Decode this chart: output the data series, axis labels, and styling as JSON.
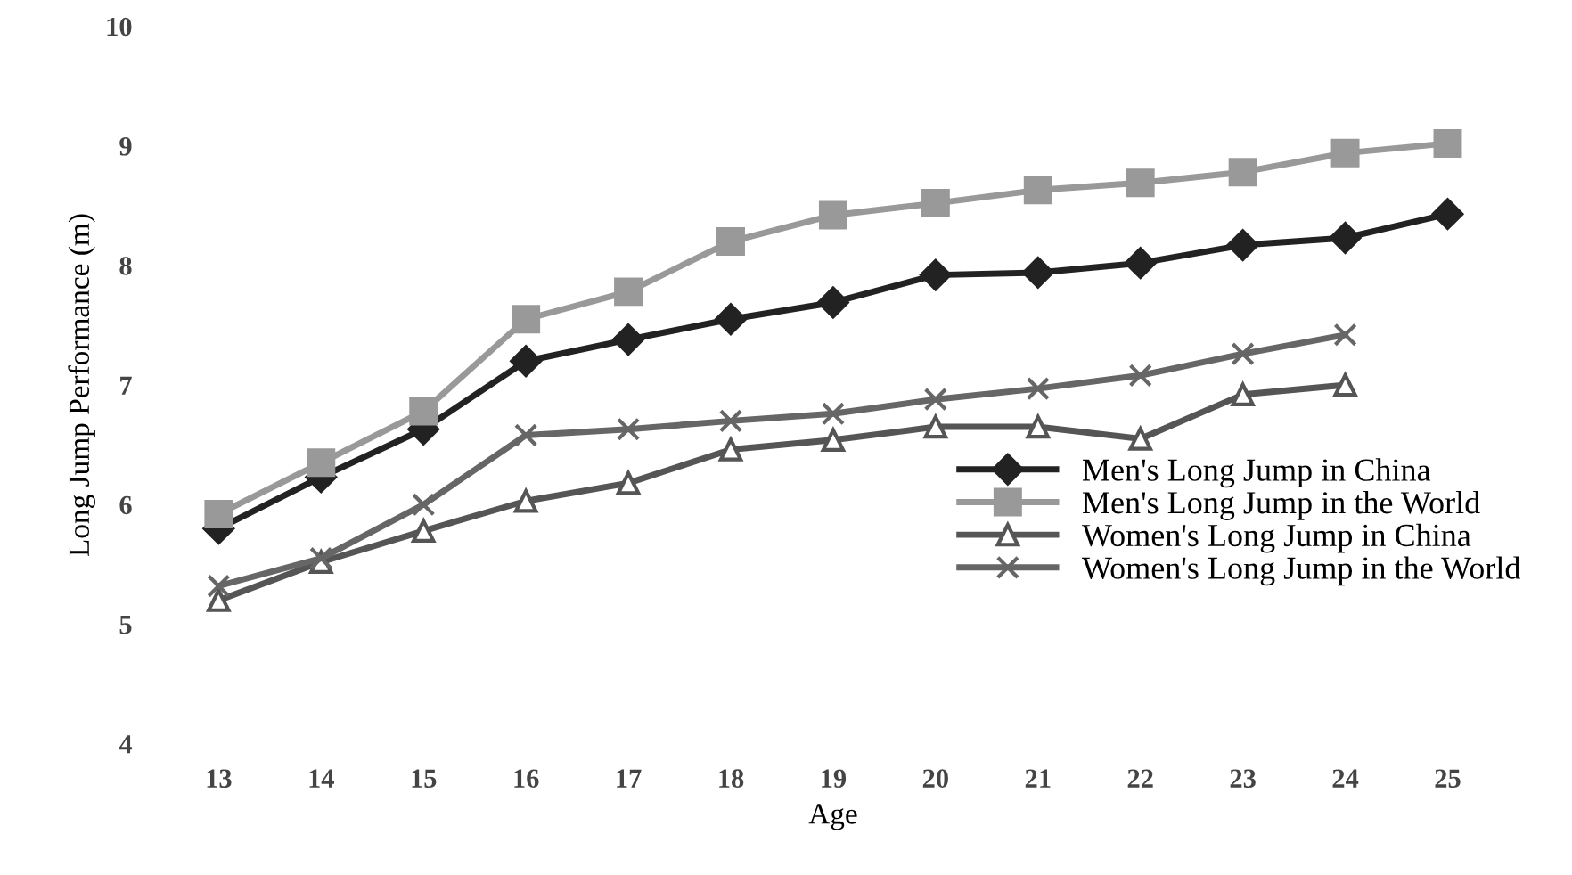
{
  "chart_data": {
    "type": "line",
    "xlabel": "Age",
    "ylabel": "Long Jump Performance (m)",
    "categories": [
      "13",
      "14",
      "15",
      "16",
      "17",
      "18",
      "19",
      "20",
      "21",
      "22",
      "23",
      "24",
      "25"
    ],
    "series": [
      {
        "name": "Men's Long Jump in China",
        "color": "#222222",
        "marker": "diamond",
        "values": [
          5.8,
          6.23,
          6.63,
          7.2,
          7.38,
          7.55,
          7.69,
          7.92,
          7.94,
          8.02,
          8.17,
          8.23,
          8.43
        ]
      },
      {
        "name": "Men's Long Jump in the World",
        "color": "#999999",
        "marker": "square",
        "values": [
          5.92,
          6.35,
          6.78,
          7.55,
          7.78,
          8.2,
          8.42,
          8.52,
          8.63,
          8.69,
          8.78,
          8.94,
          9.02
        ]
      },
      {
        "name": "Women's Long Jump in China",
        "color": "#555555",
        "marker": "triangle",
        "values": [
          5.2,
          5.52,
          5.78,
          6.03,
          6.18,
          6.46,
          6.54,
          6.65,
          6.65,
          6.55,
          6.92,
          7.0,
          null
        ]
      },
      {
        "name": "Women's Long Jump in the World",
        "color": "#666666",
        "marker": "cross",
        "values": [
          5.32,
          5.55,
          6.0,
          6.58,
          6.63,
          6.7,
          6.76,
          6.88,
          6.97,
          7.08,
          7.26,
          7.42,
          null
        ]
      }
    ],
    "ylim": [
      4,
      10
    ],
    "yticks": [
      4,
      5,
      6,
      7,
      8,
      9,
      10
    ],
    "legend": "bottom right"
  }
}
